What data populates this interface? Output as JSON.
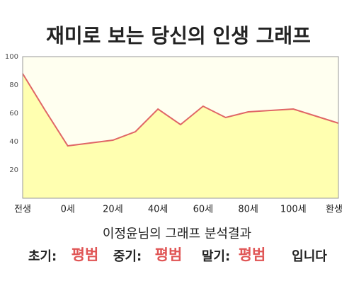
{
  "chart_data": {
    "type": "area",
    "title": "재미로 보는 당신의 인생 그래프",
    "categories": [
      "전생",
      null,
      "0세",
      null,
      "20세",
      null,
      "40세",
      null,
      "60세",
      null,
      "80세",
      null,
      "100세",
      null,
      "환생"
    ],
    "values": [
      88,
      62,
      37,
      39,
      41,
      47,
      63,
      52,
      65,
      57,
      61,
      62,
      63,
      58,
      53
    ],
    "color": "#e06666",
    "fill": "#ffffb0",
    "background": "#fffff0",
    "ylim": [
      0,
      100
    ],
    "yticks": [
      20,
      40,
      60,
      80,
      100
    ],
    "grid": false,
    "result": {
      "heading": "이정윤님의 그래프 분석결과",
      "items": [
        {
          "label": "초기:",
          "value": "평범"
        },
        {
          "label": "중기:",
          "value": "평범"
        },
        {
          "label": "말기:",
          "value": "평범"
        }
      ],
      "ending": "입니다"
    }
  }
}
